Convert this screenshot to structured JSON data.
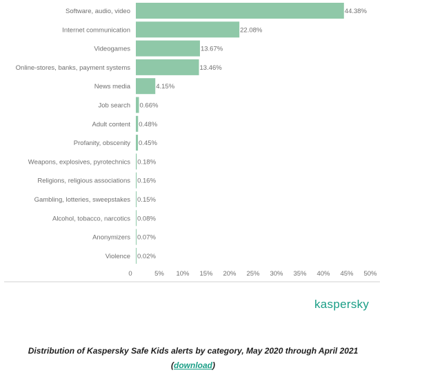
{
  "chart_data": {
    "type": "bar",
    "orientation": "horizontal",
    "categories": [
      "Software, audio, video",
      "Internet communication",
      "Videogames",
      "Online-stores, banks, payment systems",
      "News media",
      "Job search",
      "Adult content",
      "Profanity, obscenity",
      "Weapons, explosives, pyrotechnics",
      "Religions, religious associations",
      "Gambling, lotteries, sweepstakes",
      "Alcohol, tobacco, narcotics",
      "Anonymizers",
      "Violence"
    ],
    "values": [
      44.38,
      22.08,
      13.67,
      13.46,
      4.15,
      0.66,
      0.48,
      0.45,
      0.18,
      0.16,
      0.15,
      0.08,
      0.07,
      0.02
    ],
    "value_labels": [
      "44.38%",
      "22.08%",
      "13.67%",
      "13.46%",
      "4.15%",
      "0.66%",
      "0.48%",
      "0.45%",
      "0.18%",
      "0.16%",
      "0.15%",
      "0.08%",
      "0.07%",
      "0.02%"
    ],
    "xlim": [
      0,
      50
    ],
    "ticks": [
      0,
      5,
      10,
      15,
      20,
      25,
      30,
      35,
      40,
      45,
      50
    ],
    "tick_labels": [
      "0",
      "5%",
      "10%",
      "15%",
      "20%",
      "25%",
      "30%",
      "35%",
      "40%",
      "45%",
      "50%"
    ],
    "bar_color": "#8fc8a8",
    "grid": false
  },
  "brand": {
    "name": "kaspersky",
    "color": "#1a9e86"
  },
  "caption": {
    "text": "Distribution of Kaspersky Safe Kids alerts by category, May 2020 through April 2021",
    "link_open": "(",
    "link_text": "download",
    "link_close": ")"
  }
}
